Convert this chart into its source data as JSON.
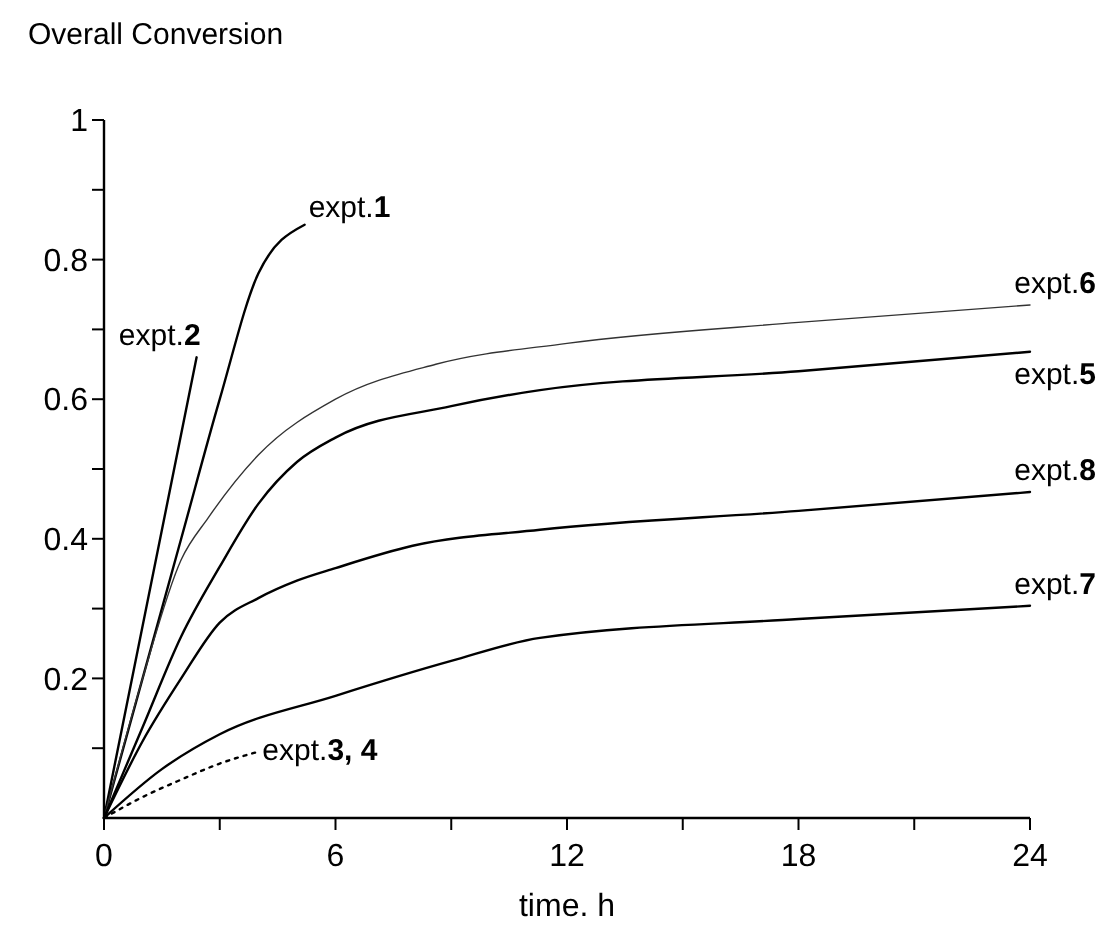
{
  "chart_data": {
    "type": "line",
    "ylabel": "Overall Conversion",
    "xlabel": "time. h",
    "xlim": [
      0,
      24
    ],
    "ylim": [
      0,
      1
    ],
    "xticks": [
      0,
      {
        "value": 3,
        "label": null
      },
      6,
      {
        "value": 9,
        "label": null
      },
      12,
      {
        "value": 15,
        "label": null
      },
      18,
      {
        "value": 21,
        "label": null
      },
      24
    ],
    "yticks": [
      {
        "value": 0.1,
        "label": null
      },
      0.2,
      {
        "value": 0.3,
        "label": null
      },
      0.4,
      {
        "value": 0.5,
        "label": null
      },
      0.6,
      {
        "value": 0.7,
        "label": null
      },
      0.8,
      {
        "value": 0.9,
        "label": null
      },
      1
    ],
    "grid": false,
    "marker": "none",
    "series": [
      {
        "name": "expt.1",
        "color": "#000000",
        "x": [
          0,
          1,
          2,
          3,
          4,
          5.2
        ],
        "values": [
          0,
          0.2,
          0.4,
          0.6,
          0.78,
          0.85
        ]
      },
      {
        "name": "expt.2",
        "color": "#000000",
        "x": [
          0,
          2.4
        ],
        "values": [
          0,
          0.66
        ]
      },
      {
        "name": "expt.6",
        "color": "#333333",
        "x": [
          0,
          1,
          2,
          2.7,
          4,
          6,
          8.6,
          12,
          18,
          24
        ],
        "values": [
          0,
          0.2,
          0.37,
          0.43,
          0.52,
          0.6,
          0.65,
          0.68,
          0.71,
          0.735
        ]
      },
      {
        "name": "expt.5",
        "color": "#000000",
        "x": [
          0,
          1,
          2,
          3,
          4,
          5,
          6,
          9,
          11.3,
          18,
          24
        ],
        "values": [
          0,
          0.13,
          0.26,
          0.36,
          0.45,
          0.51,
          0.545,
          0.59,
          0.613,
          0.64,
          0.668
        ]
      },
      {
        "name": "expt.8",
        "color": "#000000",
        "x": [
          0,
          1,
          2,
          3,
          4,
          5,
          6,
          8,
          11.3,
          18,
          24
        ],
        "values": [
          0,
          0.11,
          0.2,
          0.28,
          0.315,
          0.34,
          0.358,
          0.39,
          0.413,
          0.44,
          0.467
        ]
      },
      {
        "name": "expt.7",
        "color": "#000000",
        "x": [
          0,
          1.5,
          3,
          6,
          9,
          11.3,
          18,
          24
        ],
        "values": [
          0,
          0.07,
          0.12,
          0.175,
          0.225,
          0.258,
          0.285,
          0.304
        ]
      },
      {
        "name": "expt.3, 4",
        "color": "#000000",
        "line_style": "dotted",
        "x": [
          0,
          1,
          2,
          3,
          4
        ],
        "values": [
          0,
          0.03,
          0.055,
          0.078,
          0.095
        ]
      }
    ]
  }
}
